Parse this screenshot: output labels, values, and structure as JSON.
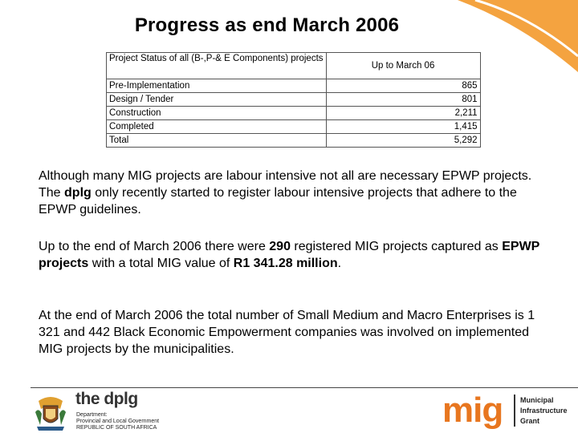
{
  "slide": {
    "title": "Progress as end March 2006"
  },
  "table": {
    "header_label": "Project Status of all (B-,P-& E Components) projects",
    "header_value": "Up to March 06",
    "rows": [
      {
        "label": "Pre-Implementation",
        "value": "865"
      },
      {
        "label": "Design / Tender",
        "value": "801"
      },
      {
        "label": "Construction",
        "value": "2,211"
      },
      {
        "label": "Completed",
        "value": "1,415"
      },
      {
        "label": "Total",
        "value": "5,292"
      }
    ]
  },
  "paragraphs": {
    "p1": {
      "a": "Although many MIG projects are labour intensive not all are necessary EPWP projects.  The ",
      "b": "dplg",
      "c": " only recently started to register labour intensive projects that adhere to the EPWP guidelines."
    },
    "p2": {
      "a": "Up to the end of March 2006 there were ",
      "b": "290",
      "c": " registered MIG projects captured as ",
      "d": "EPWP projects",
      "e": " with a total MIG value of ",
      "f": "R1 341.28 million",
      "g": "."
    },
    "p3": "At the end of March 2006 the total number of Small Medium and Macro Enterprises is 1 321 and 442 Black Economic Empowerment companies was involved on implemented MIG projects by the municipalities."
  },
  "footer": {
    "dplg_name": "the dplg",
    "dplg_sub": [
      "Department:",
      "Provincial and Local Government",
      "REPUBLIC OF SOUTH AFRICA"
    ],
    "mig_logo": "mig",
    "mig_sub": [
      "Municipal",
      "Infrastructure",
      "Grant"
    ]
  },
  "colors": {
    "accent_orange": "#f4a340",
    "mig_orange": "#e8761f"
  },
  "icons": {
    "crest": "coat-of-arms-icon"
  }
}
